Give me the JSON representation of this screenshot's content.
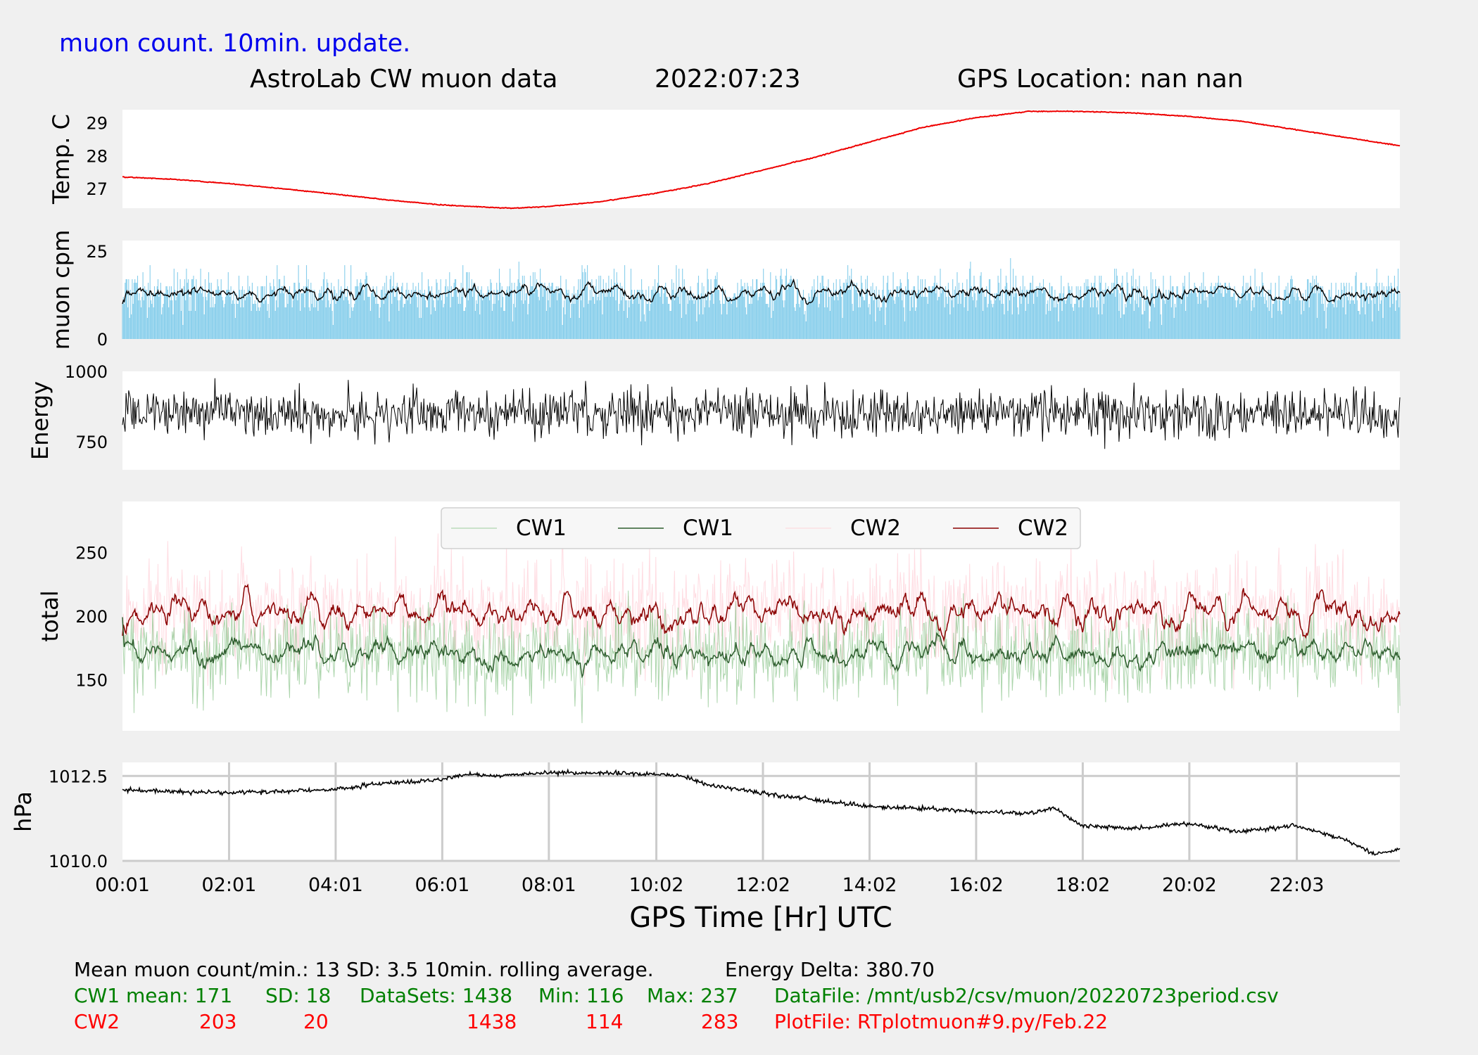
{
  "header": {
    "update_note": "muon count.  10min. update.",
    "title": "AstroLab CW muon data",
    "date": "2022:07:23",
    "gps_location": "GPS Location: nan   nan"
  },
  "colors": {
    "note": "#0000ee",
    "temp": "#ee0000",
    "muon_bars": "#87ceeb",
    "cw1_raw": "#7fbf7f",
    "cw1_avg": "#2f5f2f",
    "cw2_raw": "#ffc0cb",
    "cw2_avg": "#8b0000",
    "cw1_text": "#008000",
    "cw2_text": "#ff0000",
    "grid": "#cccccc"
  },
  "chart_data": [
    {
      "id": "temp",
      "type": "line",
      "ylabel": "Temp. C",
      "ylim": [
        26.4,
        29.4
      ],
      "yticks": [
        27,
        28,
        29
      ],
      "x": [
        "00:01",
        "01:00",
        "02:00",
        "03:00",
        "04:00",
        "05:00",
        "06:00",
        "07:00",
        "07:20",
        "08:00",
        "09:00",
        "10:00",
        "11:00",
        "12:00",
        "13:00",
        "14:00",
        "15:00",
        "16:00",
        "17:00",
        "18:00",
        "19:00",
        "20:00",
        "21:00",
        "22:00",
        "23:00",
        "23:59"
      ],
      "values": [
        27.35,
        27.28,
        27.15,
        27.0,
        26.83,
        26.65,
        26.5,
        26.42,
        26.4,
        26.45,
        26.6,
        26.85,
        27.15,
        27.55,
        27.95,
        28.4,
        28.85,
        29.15,
        29.35,
        29.35,
        29.3,
        29.2,
        29.05,
        28.8,
        28.55,
        28.3
      ]
    },
    {
      "id": "muon",
      "type": "bar+line",
      "ylabel": "muon cpm",
      "ylim": [
        0,
        28
      ],
      "yticks": [
        0,
        25
      ],
      "mean": 13,
      "sd": 3.5,
      "series": [
        {
          "legend": "",
          "style": "bars",
          "color_key": "muon_bars"
        },
        {
          "legend": "",
          "style": "rolling-average",
          "color_key": "black"
        }
      ]
    },
    {
      "id": "energy",
      "type": "line",
      "ylabel": "Energy",
      "ylim": [
        650,
        1000
      ],
      "yticks": [
        750,
        1000
      ],
      "delta": 380.7
    },
    {
      "id": "total",
      "type": "line",
      "ylabel": "total",
      "ylim": [
        110,
        290
      ],
      "yticks": [
        150,
        200,
        250
      ],
      "legend_position": "top-center",
      "series": [
        {
          "name": "CW1",
          "style": "raw",
          "mean": 171,
          "sd": 18,
          "min": 116,
          "max": 237,
          "color_key": "cw1_raw"
        },
        {
          "name": "CW1",
          "style": "rolling-average",
          "mean": 171,
          "color_key": "cw1_avg"
        },
        {
          "name": "CW2",
          "style": "raw",
          "mean": 203,
          "sd": 20,
          "min": 114,
          "max": 283,
          "color_key": "cw2_raw"
        },
        {
          "name": "CW2",
          "style": "rolling-average",
          "mean": 203,
          "color_key": "cw2_avg"
        }
      ]
    },
    {
      "id": "pressure",
      "type": "line",
      "ylabel": "hPa",
      "xlabel": "GPS Time  [Hr] UTC",
      "ylim": [
        1010.0,
        1012.9
      ],
      "yticks": [
        1010.0,
        1012.5
      ],
      "grid": true,
      "xticks": [
        "00:01",
        "02:01",
        "04:01",
        "06:01",
        "08:01",
        "10:02",
        "12:02",
        "14:02",
        "16:02",
        "18:02",
        "20:02",
        "22:03"
      ],
      "x": [
        "00:01",
        "01:00",
        "02:00",
        "03:00",
        "04:00",
        "05:00",
        "06:00",
        "06:30",
        "07:00",
        "08:00",
        "09:00",
        "10:00",
        "10:30",
        "11:00",
        "12:00",
        "13:00",
        "14:00",
        "15:00",
        "16:00",
        "17:00",
        "17:30",
        "18:00",
        "19:00",
        "20:00",
        "21:00",
        "22:00",
        "23:00",
        "23:30",
        "23:59"
      ],
      "values": [
        1012.1,
        1012.05,
        1012.0,
        1012.05,
        1012.1,
        1012.3,
        1012.4,
        1012.55,
        1012.5,
        1012.6,
        1012.6,
        1012.55,
        1012.5,
        1012.25,
        1012.0,
        1011.8,
        1011.6,
        1011.55,
        1011.45,
        1011.4,
        1011.55,
        1011.05,
        1010.95,
        1011.1,
        1010.85,
        1011.05,
        1010.6,
        1010.2,
        1010.35
      ]
    }
  ],
  "stats": {
    "line1": {
      "mean": "Mean muon count/min.: 13  SD: 3.5   10min. rolling average.",
      "energy_delta": "Energy Delta:  380.70"
    },
    "cw1": {
      "label": "CW1 mean: 171",
      "sd": "SD: 18",
      "datasets": "DataSets: 1438",
      "min": "Min: 116",
      "max": "Max: 237",
      "file": "DataFile: /mnt/usb2/csv/muon/20220723period.csv"
    },
    "cw2": {
      "label": "CW2",
      "mean": "203",
      "sd": "20",
      "datasets": "1438",
      "min": "114",
      "max": "283",
      "file": "PlotFile: RTplotmuon#9.py/Feb.22"
    }
  }
}
